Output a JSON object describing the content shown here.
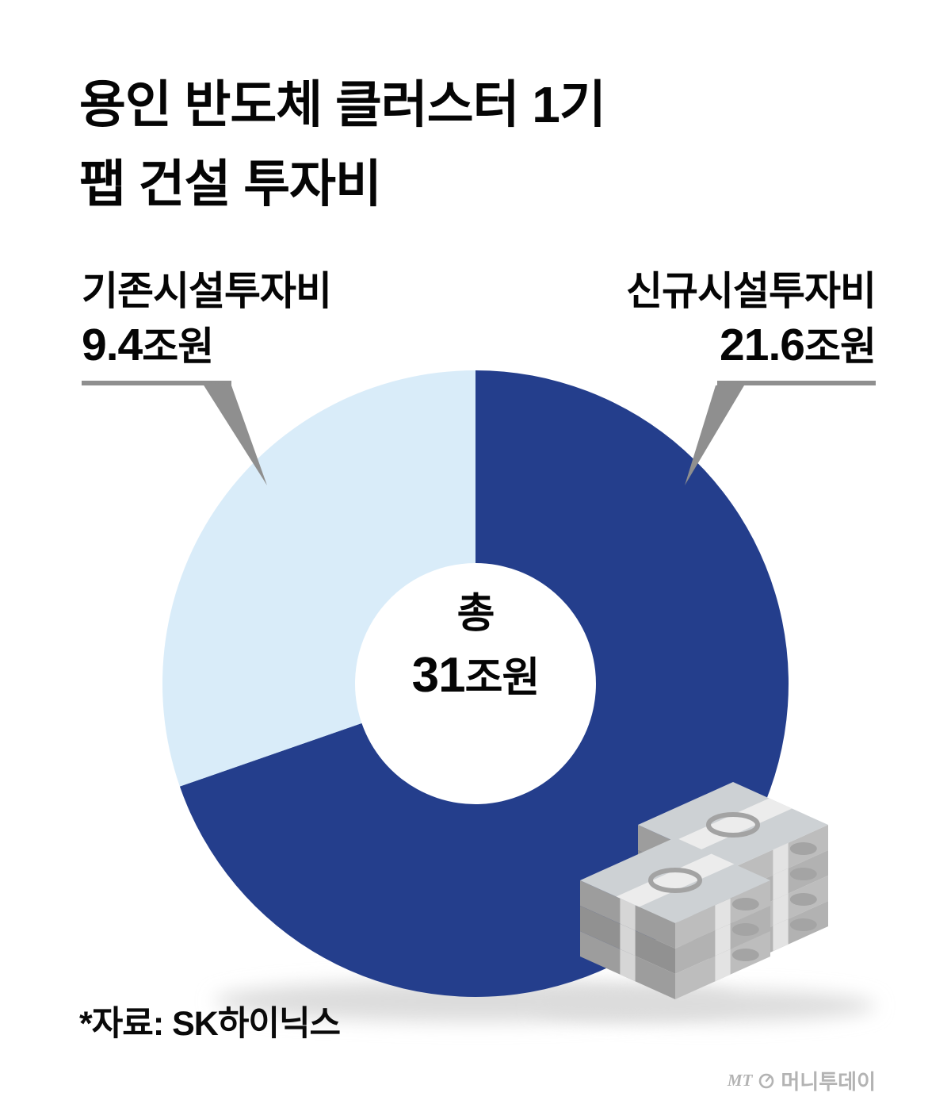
{
  "title": {
    "line1": "용인 반도체 클러스터 1기",
    "line2": "팹 건설 투자비"
  },
  "labels": {
    "left": {
      "name": "기존시설투자비",
      "value": "9.4",
      "unit": "조원"
    },
    "right": {
      "name": "신규시설투자비",
      "value": "21.6",
      "unit": "조원"
    }
  },
  "center": {
    "prefix": "총",
    "value": "31",
    "unit": "조원"
  },
  "source": "*자료: SK하이닉스",
  "logo": {
    "mt": "MT",
    "name": "머니투데이"
  },
  "colors": {
    "navy": "#243e8c",
    "light_blue": "#d9ecf9",
    "leader": "#8f8f8f",
    "shadow": "#dcdcdc",
    "text": "#050505"
  },
  "chart_data": {
    "type": "pie",
    "donut": true,
    "title": "용인 반도체 클러스터 1기 팹 건설 투자비",
    "center_label": "총 31조원",
    "unit": "조원",
    "total": 31,
    "start_angle_deg": 0,
    "direction": "clockwise",
    "legend_position": "callout-labels",
    "slices": [
      {
        "label": "신규시설투자비",
        "value": 21.6,
        "color": "#243e8c"
      },
      {
        "label": "기존시설투자비",
        "value": 9.4,
        "color": "#d9ecf9"
      }
    ]
  }
}
